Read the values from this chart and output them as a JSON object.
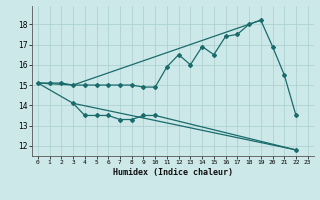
{
  "xlabel": "Humidex (Indice chaleur)",
  "bg_color": "#cde8e8",
  "grid_color": "#aacece",
  "line_color": "#1a6b6b",
  "xlim": [
    -0.5,
    23.5
  ],
  "ylim": [
    11.5,
    18.9
  ],
  "yticks": [
    12,
    13,
    14,
    15,
    16,
    17,
    18
  ],
  "xticks": [
    0,
    1,
    2,
    3,
    4,
    5,
    6,
    7,
    8,
    9,
    10,
    11,
    12,
    13,
    14,
    15,
    16,
    17,
    18,
    19,
    20,
    21,
    22,
    23
  ],
  "line1_x": [
    0,
    1,
    2,
    3,
    4,
    5,
    6,
    7,
    8,
    9,
    10,
    11,
    12,
    13,
    14,
    15,
    16,
    17,
    18,
    19,
    20,
    21,
    22
  ],
  "line1_y": [
    15.1,
    15.1,
    15.1,
    15.0,
    15.0,
    15.0,
    15.0,
    15.0,
    15.0,
    14.9,
    14.9,
    15.9,
    16.5,
    16.0,
    16.9,
    16.5,
    17.4,
    17.5,
    18.0,
    18.2,
    16.9,
    15.5,
    13.5
  ],
  "line2_x": [
    0,
    3,
    19
  ],
  "line2_y": [
    15.1,
    15.0,
    18.2
  ],
  "line3_x": [
    0,
    3,
    22
  ],
  "line3_y": [
    15.1,
    14.1,
    11.8
  ],
  "line4_x": [
    3,
    4,
    5,
    6,
    7,
    8,
    9,
    10,
    22
  ],
  "line4_y": [
    14.1,
    13.5,
    13.5,
    13.5,
    13.3,
    13.3,
    13.5,
    13.5,
    11.8
  ]
}
